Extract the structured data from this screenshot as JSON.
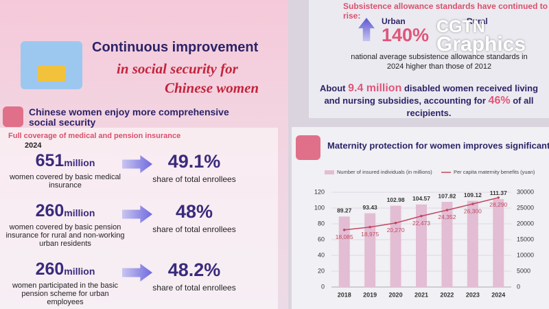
{
  "header": {
    "title_line1": "Continuous improvement",
    "title_line2": "in social security for",
    "title_line3": "Chinese women"
  },
  "coverage": {
    "heading": "Chinese women enjoy more comprehensive social security",
    "subheading": "Full coverage of medical and pension insurance",
    "year": "2024",
    "items": [
      {
        "number": "651",
        "unit": "million",
        "description": "women covered by basic medical insurance",
        "share": "49.1%",
        "share_label": "share of total enrollees"
      },
      {
        "number": "260",
        "unit": "million",
        "description": "women covered by basic pension insurance for rural and non-working urban residents",
        "share": "48%",
        "share_label": "share of total enrollees"
      },
      {
        "number": "260",
        "unit": "million",
        "description": "women participated in the basic pension scheme for urban employees",
        "share": "48.2%",
        "share_label": "share of total enrollees"
      }
    ]
  },
  "allowance": {
    "heading": "Subsistence allowance standards have continued to rise:",
    "urban_label": "Urban",
    "urban_value": "140%",
    "rural_label": "Rural",
    "note": "national average subsistence allowance standards in 2024 higher than those of 2012"
  },
  "disabled": {
    "parts": [
      "About",
      "9.4 million",
      "disabled women received living and nursing subsidies, accounting for",
      "46%",
      "of all recipients."
    ]
  },
  "logo": {
    "line1": "CGTN",
    "line2": "Graphics"
  },
  "chart_data": {
    "type": "combo",
    "title": "Maternity protection for women improves significant",
    "categories": [
      "2018",
      "2019",
      "2020",
      "2021",
      "2022",
      "2023",
      "2024"
    ],
    "series": [
      {
        "name": "Number of insured individuals (in millions)",
        "type": "bar",
        "color": "#e3bdd4",
        "values": [
          89.27,
          93.43,
          102.98,
          104.57,
          107.82,
          109.12,
          111.37
        ]
      },
      {
        "name": "Per capita maternity benefits (yuan)",
        "type": "line",
        "axis": "y2",
        "color": "#c0485f",
        "values": [
          18085,
          18975,
          20270,
          22473,
          24352,
          26300,
          28290
        ],
        "value_labels": [
          "18,085",
          "18,975",
          "20,270",
          "22,473",
          "24,352",
          "26,300",
          "28,290"
        ]
      }
    ],
    "ylim": [
      0,
      120
    ],
    "yticks": [
      0,
      20,
      40,
      60,
      80,
      100,
      120
    ],
    "y2lim": [
      0,
      30000
    ],
    "y2ticks": [
      0,
      5000,
      10000,
      15000,
      20000,
      25000,
      30000
    ],
    "grid": true
  }
}
